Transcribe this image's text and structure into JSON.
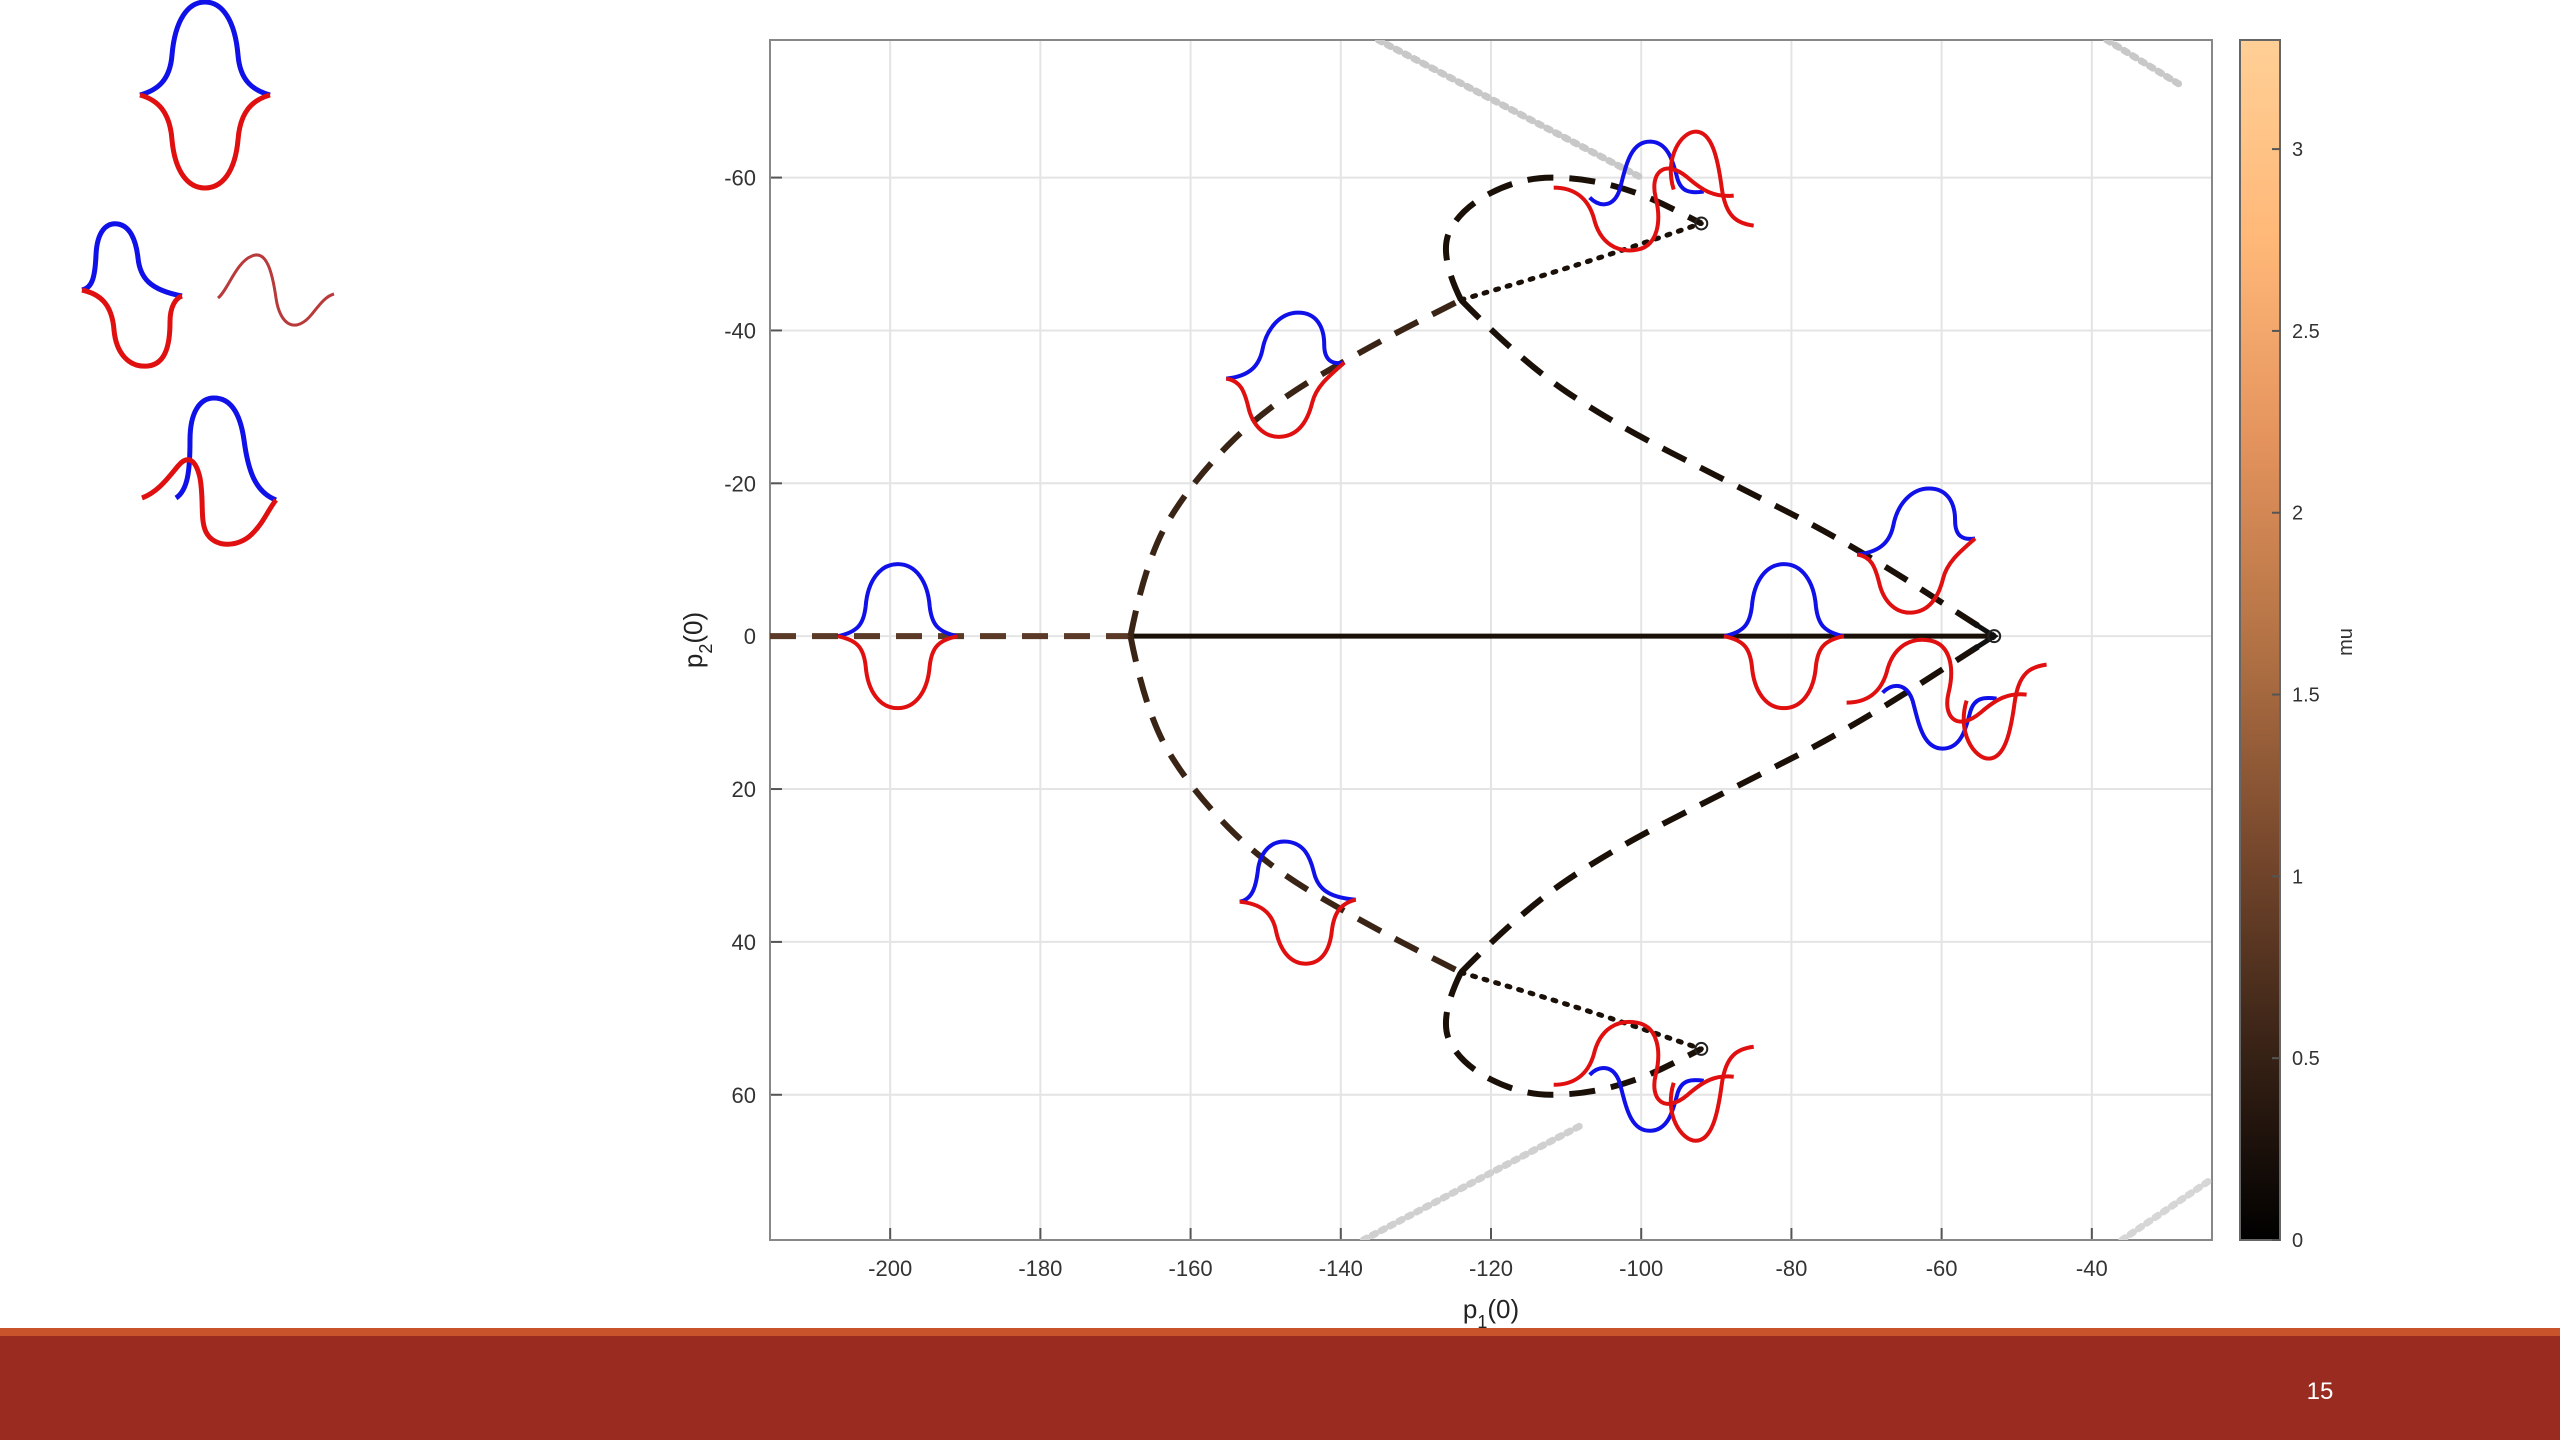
{
  "slide": {
    "page_number": "15"
  },
  "chart_data": {
    "type": "line",
    "xlabel": "p_1(0)",
    "ylabel": "p_2(0)",
    "xlim": [
      -216,
      -24
    ],
    "ylim": [
      -78,
      79
    ],
    "y_reversed": true,
    "grid": true,
    "x_ticks": [
      -200,
      -180,
      -160,
      -140,
      -120,
      -100,
      -80,
      -60,
      -40
    ],
    "y_ticks": [
      -60,
      -40,
      -20,
      0,
      20,
      40,
      60
    ],
    "colorbar": {
      "label": "mu",
      "range": [
        0,
        3.3
      ],
      "ticks": [
        0,
        0.5,
        1,
        1.5,
        2,
        2.5,
        3
      ],
      "colors": [
        "#000000",
        "#3b2417",
        "#7a4a2e",
        "#b47345",
        "#e4935d",
        "#ffb878",
        "#ffcf96"
      ]
    },
    "series": [
      {
        "style": "solid",
        "color": "#1a1008",
        "points": [
          [
            -168,
            0
          ],
          [
            -53,
            0
          ]
        ]
      },
      {
        "style": "dashed",
        "color": "#5a3a26",
        "points": [
          [
            -216,
            0
          ],
          [
            -168,
            0
          ]
        ]
      },
      {
        "style": "dashed",
        "color": "#3a2416",
        "points": [
          [
            -168,
            0
          ],
          [
            -166,
            -10
          ],
          [
            -160,
            -20
          ],
          [
            -150,
            -30
          ],
          [
            -136,
            -38
          ],
          [
            -124,
            -44
          ]
        ]
      },
      {
        "style": "dashed",
        "color": "#3a2416",
        "points": [
          [
            -168,
            0
          ],
          [
            -166,
            10
          ],
          [
            -160,
            20
          ],
          [
            -150,
            30
          ],
          [
            -136,
            38
          ],
          [
            -124,
            44
          ]
        ]
      },
      {
        "style": "dashed",
        "color": "#1a1008",
        "points": [
          [
            -124,
            -44
          ],
          [
            -116,
            -36
          ],
          [
            -104,
            -28
          ],
          [
            -88,
            -20
          ],
          [
            -72,
            -12
          ],
          [
            -53,
            0
          ]
        ]
      },
      {
        "style": "dashed",
        "color": "#1a1008",
        "points": [
          [
            -124,
            44
          ],
          [
            -116,
            36
          ],
          [
            -104,
            28
          ],
          [
            -88,
            20
          ],
          [
            -72,
            12
          ],
          [
            -53,
            0
          ]
        ]
      },
      {
        "style": "dashed",
        "color": "#1a1008",
        "points": [
          [
            -124,
            -44
          ],
          [
            -127,
            -50
          ],
          [
            -124,
            -56
          ],
          [
            -116,
            -60
          ],
          [
            -108,
            -60
          ],
          [
            -100,
            -58
          ],
          [
            -92,
            -54
          ]
        ]
      },
      {
        "style": "dashed",
        "color": "#1a1008",
        "points": [
          [
            -124,
            44
          ],
          [
            -127,
            50
          ],
          [
            -124,
            56
          ],
          [
            -116,
            60
          ],
          [
            -108,
            60
          ],
          [
            -100,
            58
          ],
          [
            -92,
            54
          ]
        ]
      },
      {
        "style": "dotted",
        "color": "#1a1008",
        "points": [
          [
            -124,
            -44
          ],
          [
            -110,
            -48
          ],
          [
            -92,
            -54
          ]
        ]
      },
      {
        "style": "dotted",
        "color": "#1a1008",
        "points": [
          [
            -124,
            44
          ],
          [
            -110,
            48
          ],
          [
            -92,
            54
          ]
        ]
      },
      {
        "style": "faint",
        "color": "#c8c8c8",
        "points": [
          [
            -135,
            -78
          ],
          [
            -100,
            -60
          ]
        ]
      },
      {
        "style": "faint",
        "color": "#c8c8c8",
        "points": [
          [
            -38,
            -78
          ],
          [
            -28,
            -72
          ]
        ]
      },
      {
        "style": "faint",
        "color": "#d0d0d0",
        "points": [
          [
            -137,
            79
          ],
          [
            -108,
            64
          ]
        ]
      },
      {
        "style": "faint",
        "color": "#d6d6d6",
        "points": [
          [
            -36,
            79
          ],
          [
            -24,
            71
          ]
        ]
      }
    ],
    "markers": [
      [
        -53,
        0
      ],
      [
        -92,
        -54
      ],
      [
        -92,
        54
      ]
    ],
    "shape_insets": [
      {
        "x": -199,
        "y": 0,
        "kind": "symmetric"
      },
      {
        "x": -81,
        "y": 0,
        "kind": "symmetric"
      },
      {
        "x": -147,
        "y": -35,
        "kind": "tilted"
      },
      {
        "x": -146,
        "y": 35,
        "kind": "tilted_mirror"
      },
      {
        "x": -101,
        "y": -60,
        "kind": "wave"
      },
      {
        "x": -101,
        "y": 60,
        "kind": "wave_mirror"
      },
      {
        "x": -63,
        "y": -12,
        "kind": "tilted"
      },
      {
        "x": -62,
        "y": 10,
        "kind": "wave_mirror"
      }
    ]
  },
  "side_insets": [
    {
      "kind": "symmetric"
    },
    {
      "kind": "tilted_pair"
    },
    {
      "kind": "wave"
    }
  ]
}
